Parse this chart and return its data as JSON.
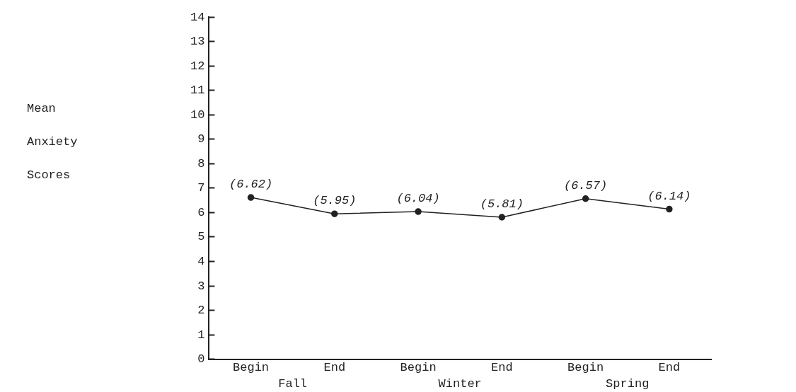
{
  "chart_data": {
    "type": "line",
    "ylabel": "Mean Anxiety Scores",
    "categories": [
      "Begin",
      "End",
      "Begin",
      "End",
      "Begin",
      "End"
    ],
    "series": [
      {
        "color": "#222222",
        "values": [
          6.62,
          5.95,
          6.04,
          5.81,
          6.57,
          6.14
        ],
        "value_labels": [
          "(6.62)",
          "(5.95)",
          "(6.04)",
          "(5.81)",
          "(6.57)",
          "(6.14)"
        ]
      }
    ],
    "annotations": [
      "Fall",
      "Winter",
      "Spring"
    ],
    "ylim": [
      0,
      14
    ],
    "yticks": [
      0,
      1,
      2,
      3,
      4,
      5,
      6,
      7,
      8,
      9,
      10,
      11,
      12,
      13,
      14
    ],
    "grid": false,
    "legend": false,
    "marker": "circle",
    "line_style": "solid"
  }
}
